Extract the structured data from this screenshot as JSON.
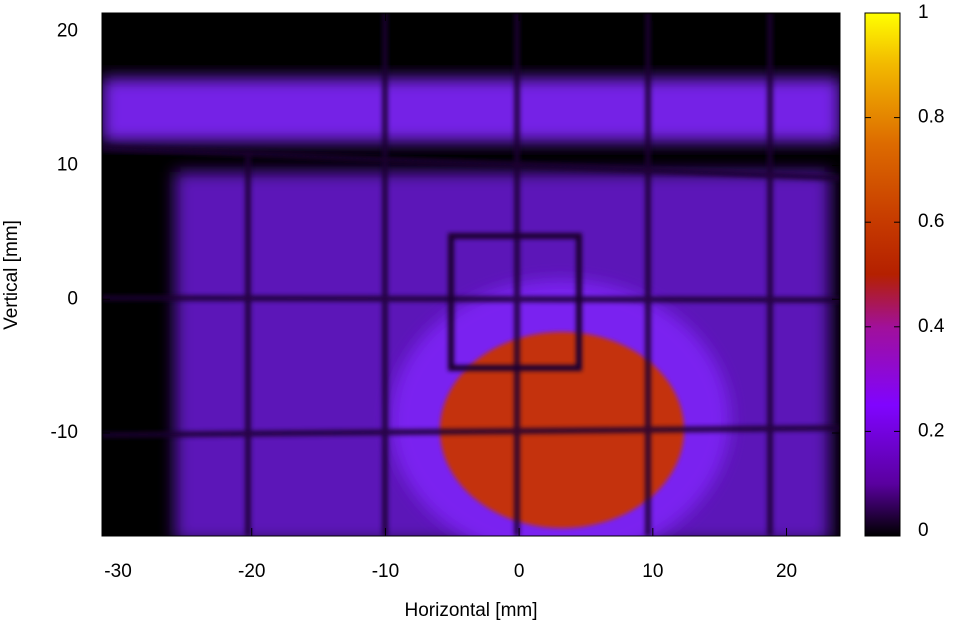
{
  "chart_data": {
    "type": "heatmap",
    "xlabel": "Horizontal [mm]",
    "ylabel": "Vertical [mm]",
    "xlim": [
      -31.2,
      24
    ],
    "ylim": [
      -17.7,
      21.4
    ],
    "xticks": [
      -30,
      -20,
      -10,
      0,
      10,
      20
    ],
    "yticks": [
      -10,
      0,
      10,
      20
    ],
    "colorbar": {
      "lim": [
        0,
        1
      ],
      "ticks": [
        0,
        0.2,
        0.4,
        0.6,
        0.8,
        1
      ]
    }
  }
}
